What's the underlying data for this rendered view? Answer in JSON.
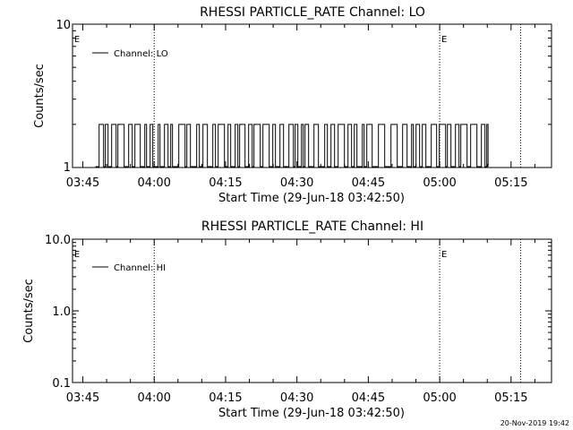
{
  "chart_data": [
    {
      "type": "line",
      "title": "RHESSI PARTICLE_RATE Channel: LO",
      "xlabel": "Start Time (29-Jun-18 03:42:50)",
      "ylabel": "Counts/sec",
      "y_scale": "log",
      "ylim": [
        1,
        10
      ],
      "y_ticks": [
        "1",
        "10"
      ],
      "x_ticks": [
        "03:45",
        "04:00",
        "04:15",
        "04:30",
        "04:45",
        "05:00",
        "05:15"
      ],
      "xlim": [
        "03:42:50",
        "05:23:30"
      ],
      "vlines": [
        "04:00:00",
        "05:00:00",
        "05:17:00"
      ],
      "markers": [
        {
          "label": "E",
          "x": "03:43:00"
        },
        {
          "label": "E",
          "x": "05:00:10"
        }
      ],
      "legend": {
        "placement": "top-left",
        "entries": [
          "Channel: LO"
        ]
      },
      "series": [
        {
          "name": "Channel: LO",
          "x_range": [
            "03:47:40",
            "05:10:10"
          ],
          "values": [
            1,
            2
          ]
        }
      ]
    },
    {
      "type": "line",
      "title": "RHESSI PARTICLE_RATE Channel: HI",
      "xlabel": "Start Time (29-Jun-18 03:42:50)",
      "ylabel": "Counts/sec",
      "y_scale": "log",
      "ylim": [
        0.1,
        10
      ],
      "y_ticks": [
        "0.1",
        "1.0",
        "10.0"
      ],
      "x_ticks": [
        "03:45",
        "04:00",
        "04:15",
        "04:30",
        "04:45",
        "05:00",
        "05:15"
      ],
      "xlim": [
        "03:42:50",
        "05:23:30"
      ],
      "vlines": [
        "04:00:00",
        "05:00:00",
        "05:17:00"
      ],
      "markers": [
        {
          "label": "E",
          "x": "03:43:00"
        },
        {
          "label": "E",
          "x": "05:00:10"
        }
      ],
      "legend": {
        "placement": "top-left",
        "entries": [
          "Channel: HI"
        ]
      },
      "series": [
        {
          "name": "Channel: HI",
          "values": []
        }
      ]
    }
  ],
  "footer": {
    "timestamp": "20-Nov-2019 19:42"
  }
}
